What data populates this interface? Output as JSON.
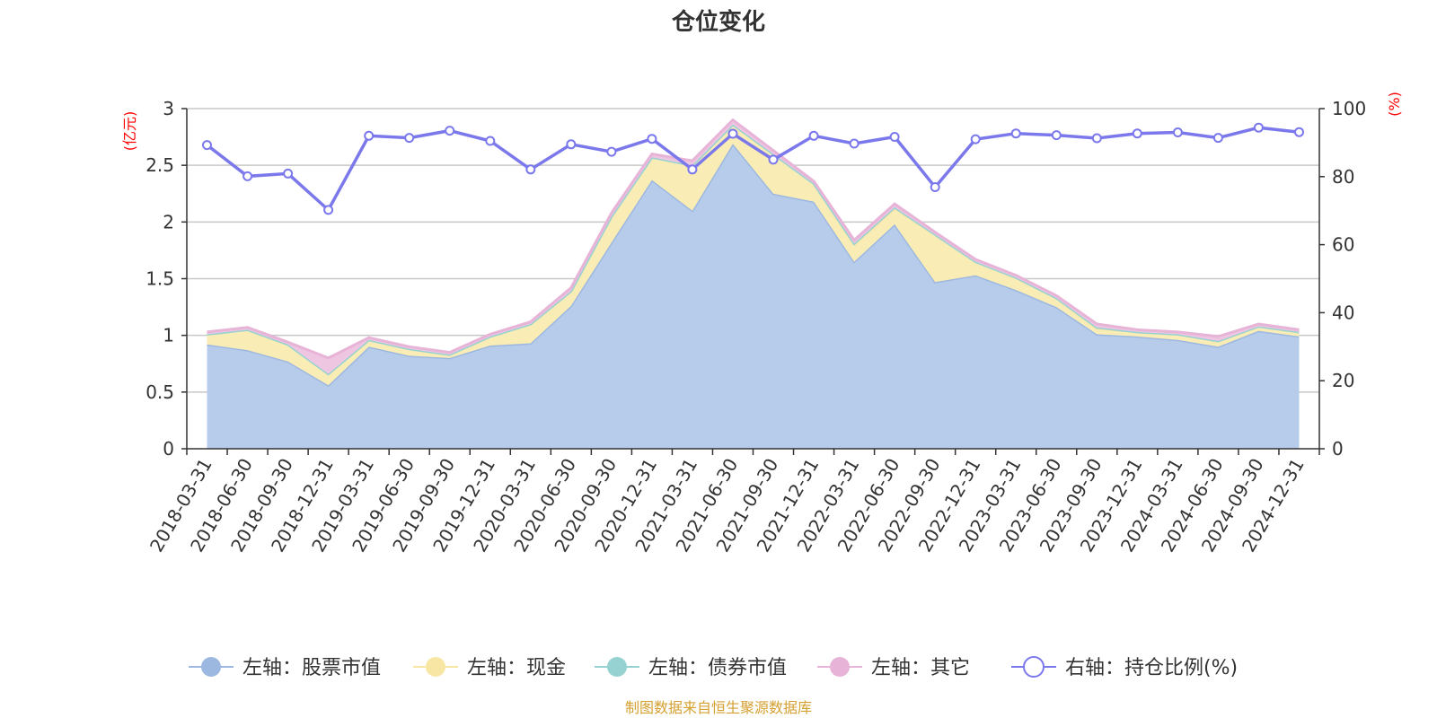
{
  "chart_data": {
    "type": "area",
    "title": "仓位变化",
    "y_left_label": "(亿元)",
    "y_right_label": "(%)",
    "y_left_range": [
      0,
      3
    ],
    "y_left_ticks": [
      "0",
      "0.5",
      "1",
      "1.5",
      "2",
      "2.5",
      "3"
    ],
    "y_right_range": [
      0,
      100
    ],
    "y_right_ticks": [
      "0",
      "20",
      "40",
      "60",
      "80",
      "100"
    ],
    "grid": true,
    "legend_position": "bottom",
    "categories": [
      "2018-03-31",
      "2018-06-30",
      "2018-09-30",
      "2018-12-31",
      "2019-03-31",
      "2019-06-30",
      "2019-09-30",
      "2019-12-31",
      "2020-03-31",
      "2020-06-30",
      "2020-09-30",
      "2020-12-31",
      "2021-03-31",
      "2021-06-30",
      "2021-09-30",
      "2021-12-31",
      "2022-03-31",
      "2022-06-30",
      "2022-09-30",
      "2022-12-31",
      "2023-03-31",
      "2023-06-30",
      "2023-09-30",
      "2023-12-31",
      "2024-03-31",
      "2024-06-30",
      "2024-09-30",
      "2024-12-31"
    ],
    "series": [
      {
        "name": "左轴：股票市值",
        "axis": "left",
        "color": "#9db8e0",
        "fill": "#b7cceb",
        "values": [
          0.92,
          0.87,
          0.77,
          0.56,
          0.9,
          0.82,
          0.8,
          0.91,
          0.93,
          1.26,
          1.82,
          2.37,
          2.1,
          2.69,
          2.25,
          2.18,
          1.65,
          1.98,
          1.47,
          1.53,
          1.4,
          1.25,
          1.01,
          0.99,
          0.96,
          0.9,
          1.04,
          0.99
        ]
      },
      {
        "name": "左轴：现金",
        "axis": "left",
        "color": "#f8e6a5",
        "fill": "#faecb5",
        "values": [
          0.09,
          0.18,
          0.15,
          0.1,
          0.06,
          0.06,
          0.03,
          0.08,
          0.17,
          0.13,
          0.23,
          0.2,
          0.4,
          0.17,
          0.35,
          0.16,
          0.15,
          0.14,
          0.42,
          0.12,
          0.11,
          0.08,
          0.05,
          0.04,
          0.05,
          0.05,
          0.04,
          0.04
        ]
      },
      {
        "name": "左轴：债券市值",
        "axis": "left",
        "color": "#97d2d2",
        "fill": "#b5dfdf",
        "values": [
          0,
          0,
          0,
          0,
          0,
          0,
          0,
          0,
          0,
          0,
          0,
          0,
          0,
          0,
          0,
          0,
          0.01,
          0.01,
          0,
          0,
          0,
          0,
          0.01,
          0,
          0,
          0,
          0,
          0
        ]
      },
      {
        "name": "左轴：其它",
        "axis": "left",
        "color": "#e7b4d8",
        "fill": "#eec6e2",
        "values": [
          0.02,
          0.02,
          0.02,
          0.14,
          0.02,
          0.02,
          0.02,
          0.02,
          0.02,
          0.03,
          0.03,
          0.03,
          0.04,
          0.04,
          0.03,
          0.02,
          0.03,
          0.03,
          0.02,
          0.02,
          0.02,
          0.02,
          0.03,
          0.02,
          0.02,
          0.04,
          0.02,
          0.02
        ]
      },
      {
        "name": "右轴：持仓比例(%)",
        "axis": "right",
        "color": "#7b78ec",
        "values": [
          89.3,
          80.1,
          80.9,
          70.2,
          92.0,
          91.4,
          93.5,
          90.5,
          82.1,
          89.5,
          87.3,
          91.1,
          82.1,
          92.6,
          85.0,
          92.0,
          89.7,
          91.7,
          76.9,
          91.0,
          92.7,
          92.2,
          91.3,
          92.7,
          93.0,
          91.4,
          94.4,
          93.1
        ]
      }
    ],
    "source_note": "制图数据来自恒生聚源数据库"
  }
}
